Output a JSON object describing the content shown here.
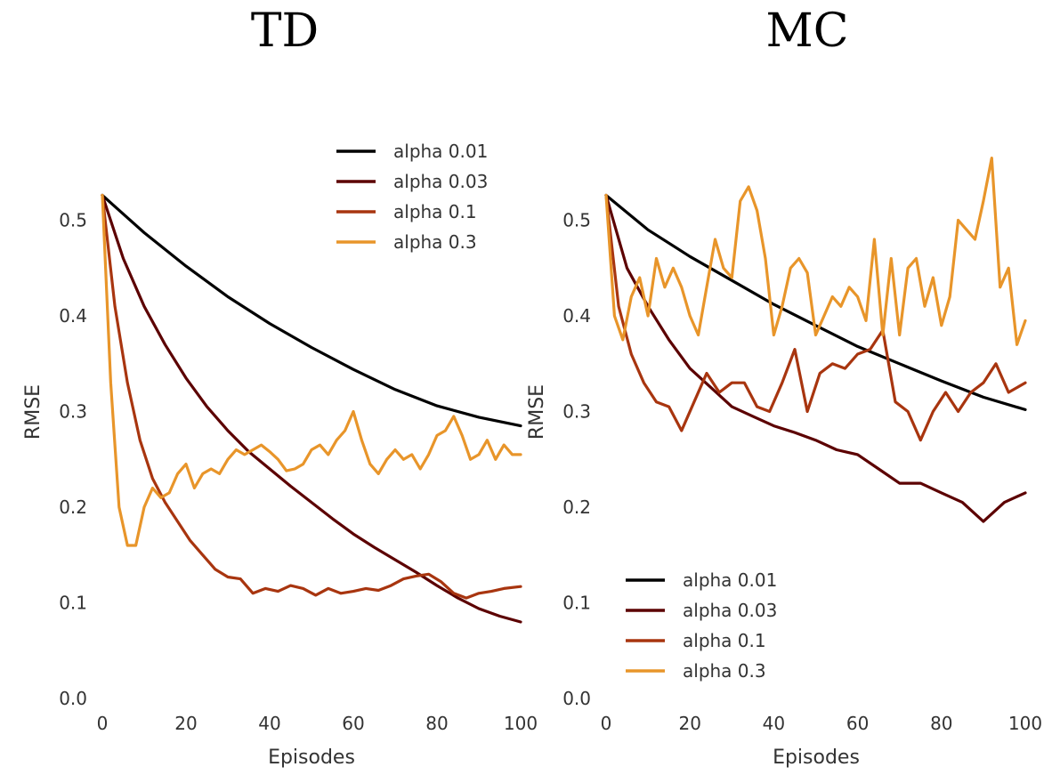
{
  "chart_data": [
    {
      "type": "line",
      "title": "TD",
      "xlabel": "Episodes",
      "ylabel": "RMSE",
      "xlim": [
        0,
        100
      ],
      "ylim": [
        0,
        0.6
      ],
      "xticks": [
        "0",
        "20",
        "40",
        "60",
        "80",
        "100"
      ],
      "yticks": [
        "0.0",
        "0.1",
        "0.2",
        "0.3",
        "0.4",
        "0.5"
      ],
      "grid": false,
      "legend": "top-right",
      "series": [
        {
          "name": "alpha 0.01",
          "color": "#000000",
          "x": [
            0,
            10,
            20,
            30,
            40,
            50,
            60,
            70,
            80,
            90,
            100
          ],
          "y": [
            0.526,
            0.487,
            0.452,
            0.42,
            0.392,
            0.367,
            0.344,
            0.323,
            0.306,
            0.294,
            0.285
          ]
        },
        {
          "name": "alpha 0.03",
          "color": "#5c0000",
          "x": [
            0,
            5,
            10,
            15,
            20,
            25,
            30,
            35,
            40,
            45,
            50,
            55,
            60,
            65,
            70,
            75,
            80,
            85,
            90,
            95,
            100
          ],
          "y": [
            0.526,
            0.46,
            0.41,
            0.37,
            0.335,
            0.305,
            0.28,
            0.258,
            0.24,
            0.222,
            0.205,
            0.188,
            0.172,
            0.158,
            0.145,
            0.132,
            0.118,
            0.105,
            0.094,
            0.086,
            0.08
          ]
        },
        {
          "name": "alpha 0.1",
          "color": "#a8350f",
          "x": [
            0,
            3,
            6,
            9,
            12,
            15,
            18,
            21,
            24,
            27,
            30,
            33,
            36,
            39,
            42,
            45,
            48,
            51,
            54,
            57,
            60,
            63,
            66,
            69,
            72,
            75,
            78,
            81,
            84,
            87,
            90,
            93,
            96,
            100
          ],
          "y": [
            0.526,
            0.41,
            0.33,
            0.27,
            0.23,
            0.205,
            0.185,
            0.165,
            0.15,
            0.135,
            0.127,
            0.125,
            0.11,
            0.115,
            0.112,
            0.118,
            0.115,
            0.108,
            0.115,
            0.11,
            0.112,
            0.115,
            0.113,
            0.118,
            0.125,
            0.128,
            0.13,
            0.122,
            0.11,
            0.105,
            0.11,
            0.112,
            0.115,
            0.117
          ]
        },
        {
          "name": "alpha 0.3",
          "color": "#e8952a",
          "x": [
            0,
            2,
            4,
            6,
            8,
            10,
            12,
            14,
            16,
            18,
            20,
            22,
            24,
            26,
            28,
            30,
            32,
            34,
            36,
            38,
            40,
            42,
            44,
            46,
            48,
            50,
            52,
            54,
            56,
            58,
            60,
            62,
            64,
            66,
            68,
            70,
            72,
            74,
            76,
            78,
            80,
            82,
            84,
            86,
            88,
            90,
            92,
            94,
            96,
            98,
            100
          ],
          "y": [
            0.526,
            0.33,
            0.2,
            0.16,
            0.16,
            0.2,
            0.22,
            0.21,
            0.215,
            0.235,
            0.245,
            0.22,
            0.235,
            0.24,
            0.235,
            0.25,
            0.26,
            0.255,
            0.26,
            0.265,
            0.258,
            0.25,
            0.238,
            0.24,
            0.245,
            0.26,
            0.265,
            0.255,
            0.27,
            0.28,
            0.3,
            0.27,
            0.245,
            0.235,
            0.25,
            0.26,
            0.25,
            0.255,
            0.24,
            0.255,
            0.275,
            0.28,
            0.295,
            0.275,
            0.25,
            0.255,
            0.27,
            0.25,
            0.265,
            0.255,
            0.255
          ]
        }
      ]
    },
    {
      "type": "line",
      "title": "MC",
      "xlabel": "Episodes",
      "ylabel": "RMSE",
      "xlim": [
        0,
        100
      ],
      "ylim": [
        0,
        0.6
      ],
      "xticks": [
        "0",
        "20",
        "40",
        "60",
        "80",
        "100"
      ],
      "yticks": [
        "0.0",
        "0.1",
        "0.2",
        "0.3",
        "0.4",
        "0.5"
      ],
      "grid": false,
      "legend": "bottom-left",
      "series": [
        {
          "name": "alpha 0.01",
          "color": "#000000",
          "x": [
            0,
            10,
            20,
            30,
            40,
            50,
            60,
            70,
            80,
            90,
            100
          ],
          "y": [
            0.526,
            0.49,
            0.462,
            0.437,
            0.412,
            0.39,
            0.368,
            0.35,
            0.332,
            0.315,
            0.302
          ]
        },
        {
          "name": "alpha 0.03",
          "color": "#5c0000",
          "x": [
            0,
            5,
            10,
            15,
            20,
            25,
            30,
            35,
            40,
            45,
            50,
            55,
            60,
            65,
            70,
            75,
            80,
            85,
            90,
            95,
            100
          ],
          "y": [
            0.526,
            0.45,
            0.41,
            0.375,
            0.345,
            0.325,
            0.305,
            0.295,
            0.285,
            0.278,
            0.27,
            0.26,
            0.255,
            0.24,
            0.225,
            0.225,
            0.215,
            0.205,
            0.185,
            0.205,
            0.215
          ]
        },
        {
          "name": "alpha 0.1",
          "color": "#a8350f",
          "x": [
            0,
            3,
            6,
            9,
            12,
            15,
            18,
            21,
            24,
            27,
            30,
            33,
            36,
            39,
            42,
            45,
            48,
            51,
            54,
            57,
            60,
            63,
            66,
            69,
            72,
            75,
            78,
            81,
            84,
            87,
            90,
            93,
            96,
            100
          ],
          "y": [
            0.526,
            0.41,
            0.36,
            0.33,
            0.31,
            0.305,
            0.28,
            0.31,
            0.34,
            0.32,
            0.33,
            0.33,
            0.305,
            0.3,
            0.33,
            0.365,
            0.3,
            0.34,
            0.35,
            0.345,
            0.36,
            0.365,
            0.385,
            0.31,
            0.3,
            0.27,
            0.3,
            0.32,
            0.3,
            0.32,
            0.33,
            0.35,
            0.32,
            0.33
          ]
        },
        {
          "name": "alpha 0.3",
          "color": "#e8952a",
          "x": [
            0,
            2,
            4,
            6,
            8,
            10,
            12,
            14,
            16,
            18,
            20,
            22,
            24,
            26,
            28,
            30,
            32,
            34,
            36,
            38,
            40,
            42,
            44,
            46,
            48,
            50,
            52,
            54,
            56,
            58,
            60,
            62,
            64,
            66,
            68,
            70,
            72,
            74,
            76,
            78,
            80,
            82,
            84,
            86,
            88,
            90,
            92,
            94,
            96,
            98,
            100
          ],
          "y": [
            0.526,
            0.4,
            0.375,
            0.42,
            0.44,
            0.4,
            0.46,
            0.43,
            0.45,
            0.43,
            0.4,
            0.38,
            0.43,
            0.48,
            0.45,
            0.44,
            0.52,
            0.535,
            0.51,
            0.46,
            0.38,
            0.41,
            0.45,
            0.46,
            0.445,
            0.38,
            0.4,
            0.42,
            0.41,
            0.43,
            0.42,
            0.395,
            0.48,
            0.38,
            0.46,
            0.38,
            0.45,
            0.46,
            0.41,
            0.44,
            0.39,
            0.42,
            0.5,
            0.49,
            0.48,
            0.52,
            0.565,
            0.43,
            0.45,
            0.37,
            0.395
          ]
        }
      ]
    }
  ]
}
